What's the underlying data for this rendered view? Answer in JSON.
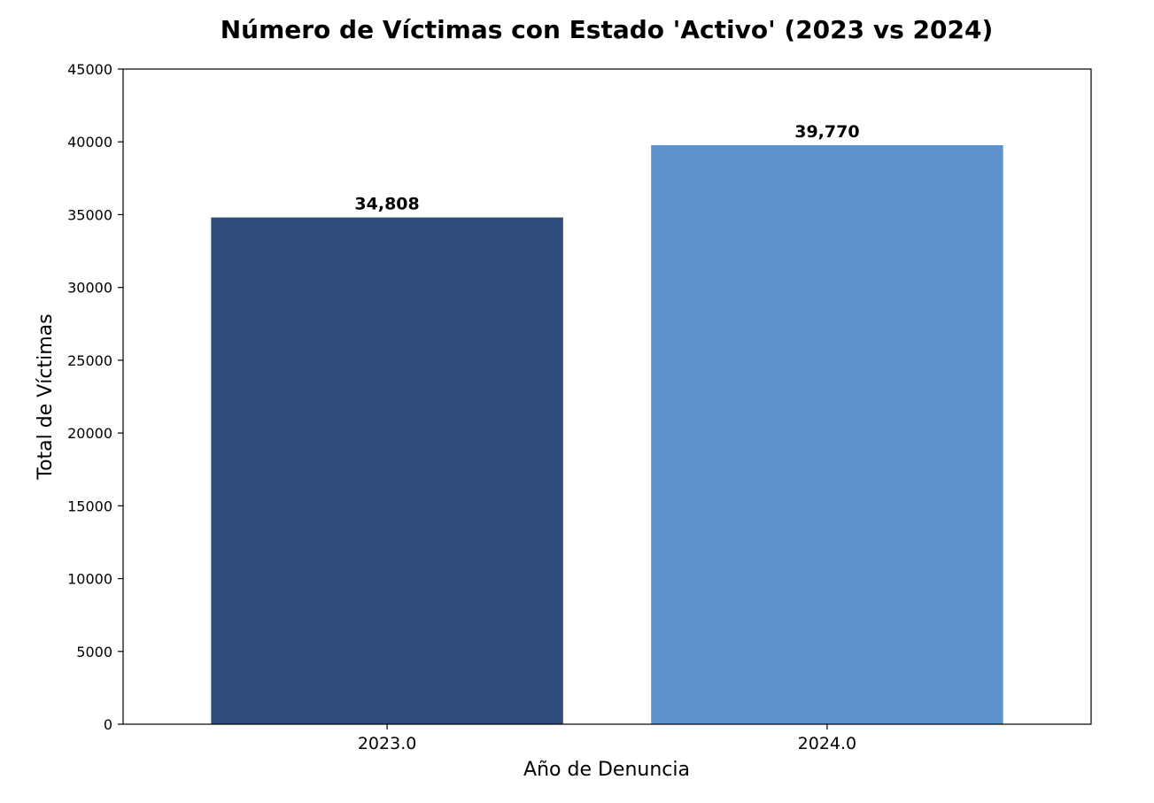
{
  "chart_data": {
    "type": "bar",
    "title": "Número de Víctimas con Estado 'Activo' (2023 vs 2024)",
    "xlabel": "Año de Denuncia",
    "ylabel": "Total de Víctimas",
    "categories": [
      "2023.0",
      "2024.0"
    ],
    "values": [
      34808,
      39770
    ],
    "data_labels": [
      "34,808",
      "39,770"
    ],
    "colors": [
      "#2d4b7c",
      "#5e92cf"
    ],
    "ylim": [
      0,
      45000
    ],
    "yticks": [
      0,
      5000,
      10000,
      15000,
      20000,
      25000,
      30000,
      35000,
      40000,
      45000
    ],
    "grid": false,
    "legend": "none"
  }
}
